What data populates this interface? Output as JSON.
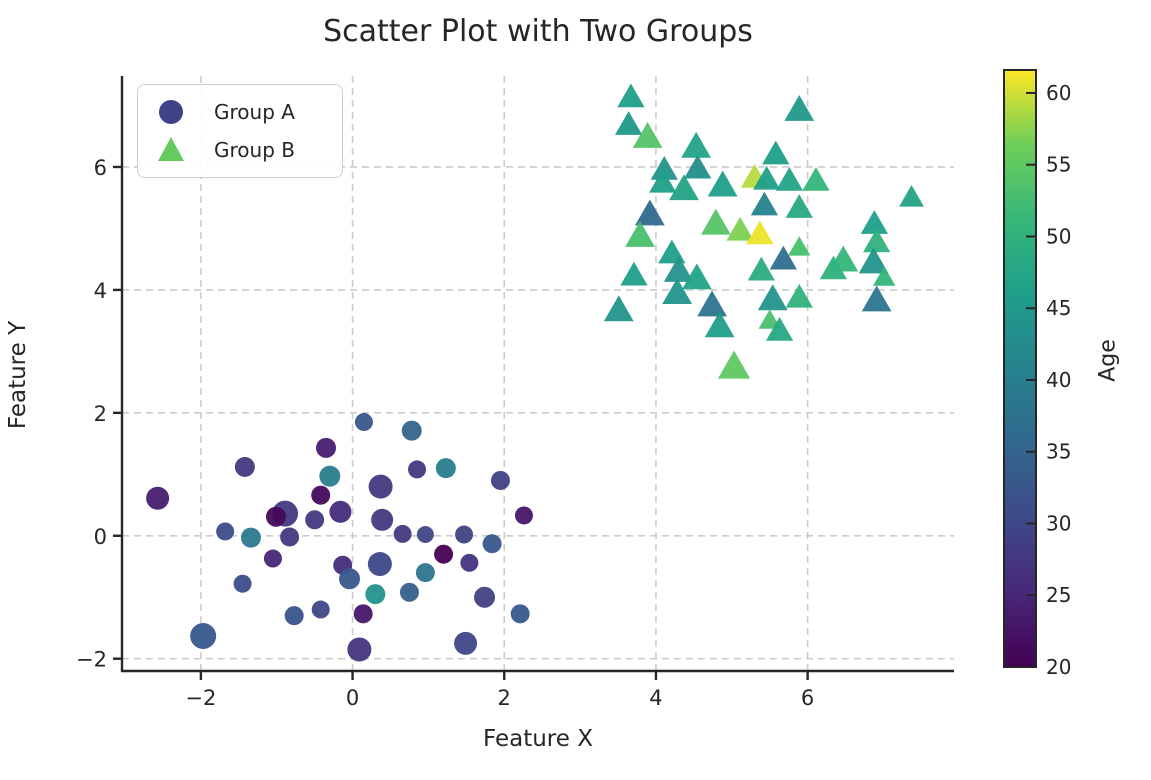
{
  "title": "Scatter Plot with Two Groups",
  "axes": {
    "x_label": "Feature X",
    "y_label": "Feature Y",
    "x_ticks": [
      -2,
      0,
      2,
      4,
      6
    ],
    "x_tick_labels": [
      "−2",
      "0",
      "2",
      "4",
      "6"
    ],
    "y_ticks": [
      -2,
      0,
      2,
      4,
      6
    ],
    "y_tick_labels": [
      "−2",
      "0",
      "2",
      "4",
      "6"
    ],
    "xlim": [
      -3.04,
      7.93
    ],
    "ylim": [
      -2.2,
      7.48
    ],
    "grid": "dashed"
  },
  "legend": {
    "items": [
      {
        "label": "Group A",
        "marker": "circle",
        "color": "#3e4487"
      },
      {
        "label": "Group B",
        "marker": "triangle",
        "color": "#66cb5d"
      }
    ]
  },
  "colorbar": {
    "label": "Age",
    "vmin": 20,
    "vmax": 61.6,
    "ticks": [
      20,
      25,
      30,
      35,
      40,
      45,
      50,
      55,
      60
    ],
    "colormap": "viridis",
    "viridis_stops": [
      [
        0.0,
        "#440154"
      ],
      [
        0.125,
        "#482878"
      ],
      [
        0.25,
        "#3e4a89"
      ],
      [
        0.375,
        "#31688e"
      ],
      [
        0.5,
        "#26828e"
      ],
      [
        0.625,
        "#1f9e89"
      ],
      [
        0.75,
        "#35b779"
      ],
      [
        0.875,
        "#6ece58"
      ],
      [
        1.0,
        "#fde725"
      ]
    ]
  },
  "colors": {
    "text": "#262626",
    "spine": "#262626",
    "grid": "#cccccc"
  },
  "chart_data": {
    "type": "scatter",
    "title": "Scatter Plot with Two Groups",
    "xlabel": "Feature X",
    "ylabel": "Feature Y",
    "color_encoding": "Age",
    "point_format": [
      "x",
      "y",
      "age",
      "marker_size_px"
    ],
    "series": [
      {
        "name": "Group A",
        "marker": "circle",
        "points": [
          [
            -2.57,
            0.61,
            24,
            21
          ],
          [
            -1.42,
            1.12,
            28,
            18
          ],
          [
            -0.35,
            1.43,
            24,
            18
          ],
          [
            -0.3,
            0.97,
            40,
            19
          ],
          [
            -0.42,
            0.66,
            21,
            17
          ],
          [
            -0.16,
            0.39,
            26,
            20
          ],
          [
            -0.89,
            0.36,
            28,
            24
          ],
          [
            -1.01,
            0.31,
            21,
            18
          ],
          [
            -0.5,
            0.26,
            28,
            17
          ],
          [
            0.15,
            1.85,
            33,
            16
          ],
          [
            -1.34,
            -0.03,
            39,
            18
          ],
          [
            -1.68,
            0.07,
            31,
            16
          ],
          [
            -0.83,
            -0.02,
            28,
            17
          ],
          [
            -1.05,
            -0.37,
            25,
            16
          ],
          [
            -1.45,
            -0.78,
            31,
            16
          ],
          [
            -1.97,
            -1.63,
            33,
            24
          ],
          [
            -0.77,
            -1.3,
            32,
            17
          ],
          [
            -0.42,
            -1.2,
            30,
            16
          ],
          [
            -0.13,
            -0.48,
            26,
            17
          ],
          [
            0.78,
            1.71,
            35,
            18
          ],
          [
            0.85,
            1.08,
            28,
            16
          ],
          [
            1.23,
            1.1,
            40,
            18
          ],
          [
            1.95,
            0.9,
            29,
            17
          ],
          [
            0.37,
            0.8,
            28,
            22
          ],
          [
            2.26,
            0.33,
            23,
            16
          ],
          [
            0.39,
            0.26,
            28,
            20
          ],
          [
            0.66,
            0.03,
            28,
            16
          ],
          [
            0.96,
            0.02,
            30,
            15
          ],
          [
            1.47,
            0.02,
            29,
            16
          ],
          [
            1.84,
            -0.13,
            33,
            17
          ],
          [
            1.2,
            -0.3,
            20,
            17
          ],
          [
            1.54,
            -0.44,
            27,
            16
          ],
          [
            0.36,
            -0.46,
            30,
            22
          ],
          [
            0.96,
            -0.6,
            38,
            17
          ],
          [
            -0.04,
            -0.7,
            33,
            19
          ],
          [
            0.3,
            -0.95,
            44,
            18
          ],
          [
            0.75,
            -0.92,
            34,
            17
          ],
          [
            1.74,
            -1.0,
            29,
            19
          ],
          [
            2.21,
            -1.27,
            33,
            17
          ],
          [
            0.14,
            -1.27,
            23,
            17
          ],
          [
            0.09,
            -1.85,
            27,
            22
          ],
          [
            1.49,
            -1.75,
            30,
            21
          ]
        ]
      },
      {
        "name": "Group B",
        "marker": "triangle",
        "points": [
          [
            3.67,
            7.11,
            46,
            22
          ],
          [
            3.64,
            6.66,
            45,
            22
          ],
          [
            3.89,
            6.46,
            54,
            24
          ],
          [
            4.53,
            6.3,
            47,
            24
          ],
          [
            4.55,
            5.95,
            43,
            22
          ],
          [
            4.11,
            5.93,
            44,
            22
          ],
          [
            4.09,
            5.72,
            46,
            22
          ],
          [
            4.37,
            5.61,
            47,
            24
          ],
          [
            4.88,
            5.67,
            46,
            24
          ],
          [
            3.92,
            5.2,
            36,
            24
          ],
          [
            5.3,
            5.8,
            59,
            22
          ],
          [
            5.46,
            5.77,
            46,
            22
          ],
          [
            5.76,
            5.75,
            47,
            22
          ],
          [
            6.11,
            5.75,
            51,
            22
          ],
          [
            4.79,
            5.05,
            54,
            24
          ],
          [
            5.11,
            4.94,
            57,
            22
          ],
          [
            5.37,
            4.88,
            61,
            22
          ],
          [
            6.88,
            5.05,
            46,
            22
          ],
          [
            7.37,
            5.48,
            47,
            20
          ],
          [
            5.89,
            5.31,
            48,
            22
          ],
          [
            5.89,
            4.67,
            53,
            18
          ],
          [
            5.68,
            4.47,
            37,
            22
          ],
          [
            5.39,
            4.29,
            49,
            22
          ],
          [
            6.47,
            4.45,
            51,
            24
          ],
          [
            6.34,
            4.31,
            50,
            22
          ],
          [
            6.91,
            4.75,
            50,
            22
          ],
          [
            6.87,
            4.42,
            44,
            24
          ],
          [
            7.01,
            4.18,
            51,
            18
          ],
          [
            6.91,
            3.8,
            38,
            24
          ],
          [
            5.54,
            3.82,
            44,
            24
          ],
          [
            5.89,
            3.85,
            50,
            22
          ],
          [
            5.5,
            3.48,
            53,
            18
          ],
          [
            5.63,
            3.31,
            48,
            22
          ],
          [
            3.79,
            4.85,
            53,
            24
          ],
          [
            4.21,
            4.57,
            46,
            22
          ],
          [
            4.3,
            4.28,
            44,
            24
          ],
          [
            4.54,
            4.16,
            47,
            24
          ],
          [
            3.71,
            4.21,
            46,
            22
          ],
          [
            4.28,
            3.92,
            44,
            24
          ],
          [
            3.51,
            3.64,
            44,
            24
          ],
          [
            4.74,
            3.72,
            38,
            24
          ],
          [
            4.84,
            3.38,
            46,
            24
          ],
          [
            5.03,
            2.72,
            55,
            26
          ],
          [
            5.43,
            5.35,
            41,
            22
          ],
          [
            5.89,
            6.9,
            45,
            24
          ],
          [
            5.58,
            6.18,
            46,
            22
          ]
        ]
      }
    ]
  }
}
